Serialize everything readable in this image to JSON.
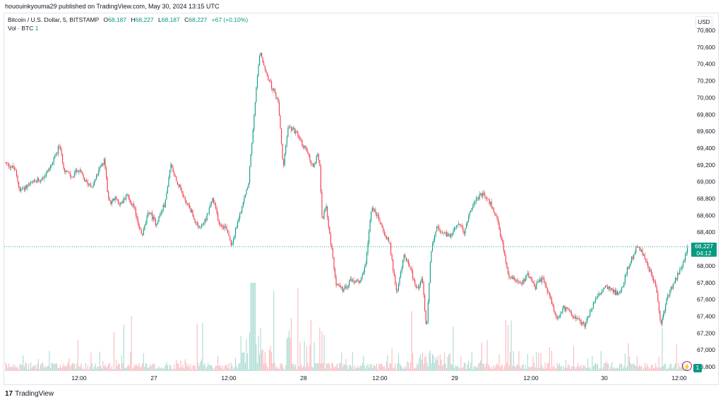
{
  "header": {
    "published": "hououinkyouma29 published on TradingView.com, May 30, 2024 13:15 UTC"
  },
  "legend": {
    "symbol": "Bitcoin / U.S. Dollar, 5, BITSTAMP",
    "open_label": "O",
    "open": "68,187",
    "high_label": "H",
    "high": "68,227",
    "low_label": "L",
    "low": "68,187",
    "close_label": "C",
    "close": "68,227",
    "change": "+67 (+0.10%)",
    "vol_label": "Vol · BTC",
    "vol_value": "1"
  },
  "currency_button": "USD",
  "price_badge": {
    "price": "68,227",
    "countdown": "04:12"
  },
  "volume_badge": "1",
  "brand": {
    "logo": "17",
    "name": "TradingView"
  },
  "colors": {
    "up": "#089981",
    "down": "#f23645",
    "last_line": "#089981"
  },
  "chart_data": {
    "type": "candlestick",
    "symbol": "BTCUSD",
    "interval": "5",
    "ylim": [
      66800,
      70800
    ],
    "y_ticks": [
      "70,800",
      "70,600",
      "70,400",
      "70,200",
      "70,000",
      "69,800",
      "69,600",
      "69,400",
      "69,200",
      "69,000",
      "68,800",
      "68,600",
      "68,400",
      "68,200",
      "68,000",
      "67,800",
      "67,600",
      "67,400",
      "67,200",
      "67,000",
      "66,800"
    ],
    "x_ticks": [
      "12:00",
      "27",
      "12:00",
      "28",
      "12:00",
      "29",
      "12:00",
      "30",
      "12:00"
    ],
    "last_price": 68227,
    "path": [
      [
        0,
        69230
      ],
      [
        15,
        69150
      ],
      [
        22,
        68900
      ],
      [
        32,
        68950
      ],
      [
        45,
        69000
      ],
      [
        58,
        69080
      ],
      [
        70,
        69250
      ],
      [
        78,
        69430
      ],
      [
        85,
        69150
      ],
      [
        95,
        69050
      ],
      [
        105,
        69150
      ],
      [
        115,
        69000
      ],
      [
        125,
        68950
      ],
      [
        135,
        69150
      ],
      [
        142,
        69250
      ],
      [
        148,
        68750
      ],
      [
        158,
        68800
      ],
      [
        165,
        68730
      ],
      [
        175,
        68850
      ],
      [
        185,
        68650
      ],
      [
        195,
        68350
      ],
      [
        205,
        68650
      ],
      [
        215,
        68500
      ],
      [
        228,
        68750
      ],
      [
        236,
        69200
      ],
      [
        245,
        69000
      ],
      [
        255,
        68800
      ],
      [
        265,
        68650
      ],
      [
        275,
        68420
      ],
      [
        285,
        68550
      ],
      [
        295,
        68800
      ],
      [
        305,
        68500
      ],
      [
        315,
        68450
      ],
      [
        322,
        68250
      ],
      [
        330,
        68500
      ],
      [
        338,
        68750
      ],
      [
        346,
        69000
      ],
      [
        352,
        69600
      ],
      [
        358,
        70200
      ],
      [
        362,
        70550
      ],
      [
        368,
        70350
      ],
      [
        378,
        70150
      ],
      [
        388,
        69950
      ],
      [
        395,
        69150
      ],
      [
        402,
        69650
      ],
      [
        412,
        69600
      ],
      [
        422,
        69450
      ],
      [
        432,
        69300
      ],
      [
        438,
        69150
      ],
      [
        444,
        69350
      ],
      [
        447,
        69200
      ],
      [
        450,
        68550
      ],
      [
        456,
        68700
      ],
      [
        462,
        68300
      ],
      [
        470,
        67800
      ],
      [
        480,
        67700
      ],
      [
        492,
        67850
      ],
      [
        502,
        67800
      ],
      [
        512,
        68000
      ],
      [
        520,
        68700
      ],
      [
        528,
        68600
      ],
      [
        538,
        68400
      ],
      [
        546,
        68250
      ],
      [
        556,
        67650
      ],
      [
        566,
        68150
      ],
      [
        576,
        67950
      ],
      [
        584,
        67700
      ],
      [
        592,
        67850
      ],
      [
        598,
        67250
      ],
      [
        604,
        68150
      ],
      [
        612,
        68450
      ],
      [
        622,
        68400
      ],
      [
        632,
        68350
      ],
      [
        642,
        68500
      ],
      [
        652,
        68400
      ],
      [
        660,
        68650
      ],
      [
        668,
        68800
      ],
      [
        678,
        68850
      ],
      [
        688,
        68750
      ],
      [
        698,
        68550
      ],
      [
        706,
        68250
      ],
      [
        714,
        67900
      ],
      [
        722,
        67850
      ],
      [
        732,
        67800
      ],
      [
        742,
        67900
      ],
      [
        752,
        67750
      ],
      [
        762,
        67850
      ],
      [
        772,
        67650
      ],
      [
        782,
        67350
      ],
      [
        792,
        67500
      ],
      [
        802,
        67450
      ],
      [
        812,
        67350
      ],
      [
        822,
        67300
      ],
      [
        832,
        67500
      ],
      [
        842,
        67650
      ],
      [
        852,
        67750
      ],
      [
        862,
        67700
      ],
      [
        872,
        67650
      ],
      [
        882,
        67950
      ],
      [
        892,
        68150
      ],
      [
        898,
        68250
      ],
      [
        906,
        68100
      ],
      [
        914,
        67950
      ],
      [
        922,
        67800
      ],
      [
        930,
        67300
      ],
      [
        938,
        67600
      ],
      [
        946,
        67750
      ],
      [
        954,
        67900
      ],
      [
        962,
        68050
      ],
      [
        968,
        68227
      ]
    ],
    "volume_profile": "low baseline with spikes near 27 12:00-28 00:00 and 29 12:00"
  }
}
